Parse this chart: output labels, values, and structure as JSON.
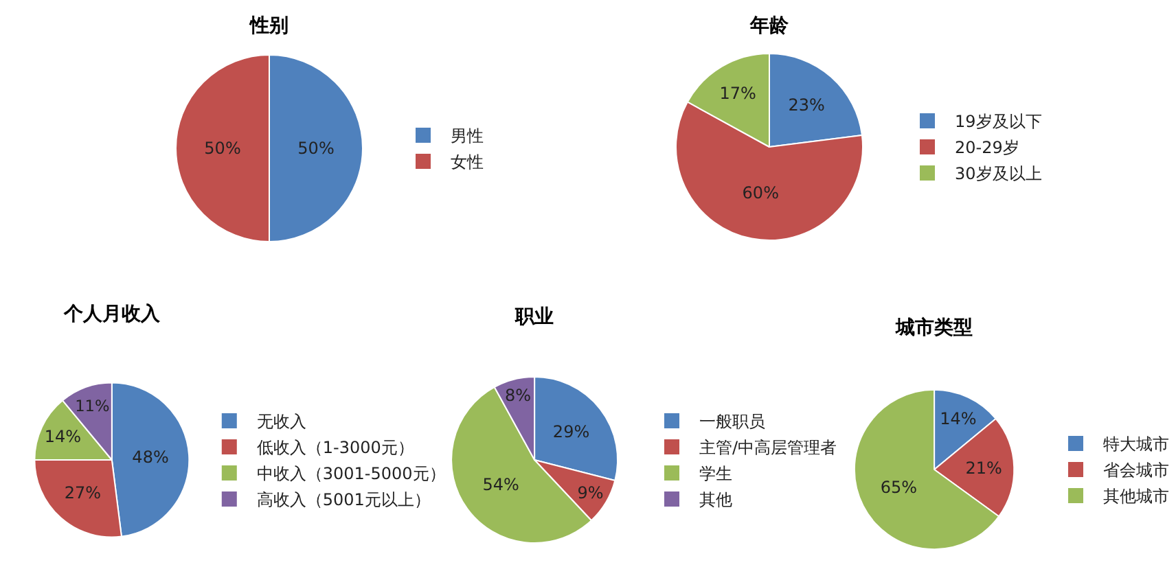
{
  "chart_data": [
    {
      "type": "pie",
      "title": "性别",
      "categories": [
        "男性",
        "女性"
      ],
      "values": [
        50,
        50
      ],
      "value_labels": [
        "50%",
        "50%"
      ],
      "colors": [
        "#4f81bd",
        "#c0504d"
      ],
      "legend": "right"
    },
    {
      "type": "pie",
      "title": "年龄",
      "categories": [
        "19岁及以下",
        "20-29岁",
        "30岁及以上"
      ],
      "values": [
        23,
        60,
        17
      ],
      "value_labels": [
        "23%",
        "60%",
        "17%"
      ],
      "colors": [
        "#4f81bd",
        "#c0504d",
        "#9bbb59"
      ],
      "legend": "right"
    },
    {
      "type": "pie",
      "title": "个人月收入",
      "categories": [
        "无收入",
        "低收入（1-3000元）",
        "中收入（3001-5000元）",
        "高收入（5001元以上）"
      ],
      "values": [
        48,
        27,
        14,
        11
      ],
      "value_labels": [
        "48%",
        "27%",
        "14%",
        "11%"
      ],
      "colors": [
        "#4f81bd",
        "#c0504d",
        "#9bbb59",
        "#8064a2"
      ],
      "legend": "right"
    },
    {
      "type": "pie",
      "title": "职业",
      "categories": [
        "一般职员",
        "主管/中高层管理者",
        "学生",
        "其他"
      ],
      "values": [
        29,
        9,
        54,
        8
      ],
      "value_labels": [
        "29%",
        "9%",
        "54%",
        "8%"
      ],
      "colors": [
        "#4f81bd",
        "#c0504d",
        "#9bbb59",
        "#8064a2"
      ],
      "legend": "right"
    },
    {
      "type": "pie",
      "title": "城市类型",
      "categories": [
        "特大城市",
        "省会城市",
        "其他城市"
      ],
      "values": [
        14,
        21,
        65
      ],
      "value_labels": [
        "14%",
        "21%",
        "65%"
      ],
      "colors": [
        "#4f81bd",
        "#c0504d",
        "#9bbb59"
      ],
      "legend": "right"
    }
  ]
}
